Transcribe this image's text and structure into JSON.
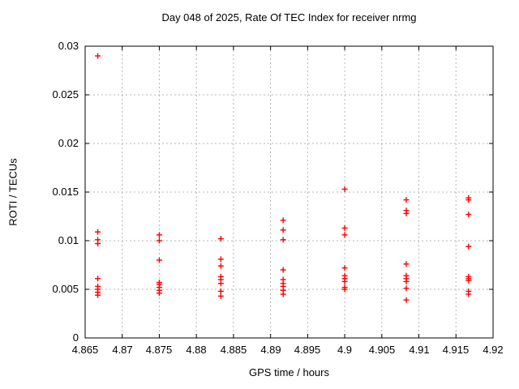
{
  "chart_data": {
    "type": "scatter",
    "title": "Day 048 of 2025, Rate Of TEC Index for receiver nrmg",
    "xlabel": "GPS time / hours",
    "ylabel": "ROTI / TECUs",
    "xlim": [
      4.865,
      4.92
    ],
    "ylim": [
      0,
      0.03
    ],
    "x_ticks": [
      "4.865",
      "4.87",
      "4.875",
      "4.88",
      "4.885",
      "4.89",
      "4.895",
      "4.9",
      "4.905",
      "4.91",
      "4.915",
      "4.92"
    ],
    "y_ticks": [
      "0",
      "0.005",
      "0.01",
      "0.015",
      "0.02",
      "0.025",
      "0.03"
    ],
    "grid": true,
    "legend": "none",
    "marker": {
      "shape": "plus",
      "color": "#ff0000",
      "size": 7
    },
    "colors": {
      "marker": "#ff0000",
      "grid": "#b4b4b4",
      "border": "#000000",
      "background": "#ffffff"
    },
    "series": [
      {
        "name": "ROTI",
        "points": [
          [
            4.8667,
            0.029
          ],
          [
            4.8667,
            0.0109
          ],
          [
            4.8667,
            0.0101
          ],
          [
            4.8667,
            0.0097
          ],
          [
            4.8667,
            0.0061
          ],
          [
            4.8667,
            0.0053
          ],
          [
            4.8667,
            0.005
          ],
          [
            4.8667,
            0.0047
          ],
          [
            4.8667,
            0.0044
          ],
          [
            4.875,
            0.0106
          ],
          [
            4.875,
            0.01
          ],
          [
            4.875,
            0.008
          ],
          [
            4.875,
            0.0057
          ],
          [
            4.875,
            0.0055
          ],
          [
            4.875,
            0.0052
          ],
          [
            4.875,
            0.0049
          ],
          [
            4.875,
            0.0046
          ],
          [
            4.8833,
            0.0102
          ],
          [
            4.8833,
            0.0081
          ],
          [
            4.8833,
            0.0074
          ],
          [
            4.8833,
            0.0063
          ],
          [
            4.8833,
            0.006
          ],
          [
            4.8833,
            0.0056
          ],
          [
            4.8833,
            0.0048
          ],
          [
            4.8833,
            0.0043
          ],
          [
            4.8917,
            0.0121
          ],
          [
            4.8917,
            0.0111
          ],
          [
            4.8917,
            0.0101
          ],
          [
            4.8917,
            0.007
          ],
          [
            4.8917,
            0.006
          ],
          [
            4.8917,
            0.0056
          ],
          [
            4.8917,
            0.0053
          ],
          [
            4.8917,
            0.0049
          ],
          [
            4.8917,
            0.0045
          ],
          [
            4.9,
            0.0153
          ],
          [
            4.9,
            0.0113
          ],
          [
            4.9,
            0.0106
          ],
          [
            4.9,
            0.0072
          ],
          [
            4.9,
            0.0064
          ],
          [
            4.9,
            0.0061
          ],
          [
            4.9,
            0.0058
          ],
          [
            4.9,
            0.0052
          ],
          [
            4.9,
            0.005
          ],
          [
            4.9083,
            0.0142
          ],
          [
            4.9083,
            0.0131
          ],
          [
            4.9083,
            0.0128
          ],
          [
            4.9083,
            0.0076
          ],
          [
            4.9083,
            0.0064
          ],
          [
            4.9083,
            0.0061
          ],
          [
            4.9083,
            0.0058
          ],
          [
            4.9083,
            0.0051
          ],
          [
            4.9083,
            0.0039
          ],
          [
            4.9167,
            0.0144
          ],
          [
            4.9167,
            0.0142
          ],
          [
            4.9167,
            0.0127
          ],
          [
            4.9167,
            0.0094
          ],
          [
            4.9167,
            0.0063
          ],
          [
            4.9167,
            0.0061
          ],
          [
            4.9167,
            0.0059
          ],
          [
            4.9167,
            0.0048
          ],
          [
            4.9167,
            0.0045
          ]
        ]
      }
    ]
  }
}
